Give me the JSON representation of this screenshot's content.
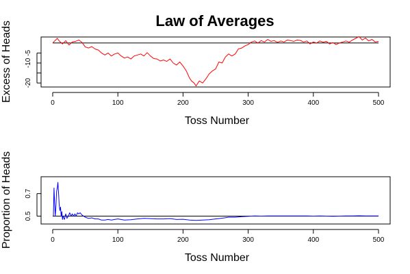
{
  "title": "Law of Averages",
  "chart_data": [
    {
      "type": "line",
      "ylabel": "Excess of Heads",
      "xlabel": "Toss Number",
      "xlim": [
        0,
        500
      ],
      "ylim": [
        -22,
        3
      ],
      "xticks": [
        0,
        100,
        200,
        300,
        400,
        500
      ],
      "yticks": [
        -20,
        -15,
        -10,
        -5
      ],
      "ytick_labels": [
        "-20",
        "",
        "-10",
        "-5"
      ],
      "reference_line": 0,
      "series": [
        {
          "color": "#ff0000",
          "points": [
            [
              0,
              0
            ],
            [
              3,
              1
            ],
            [
              7,
              2.3
            ],
            [
              10,
              1
            ],
            [
              15,
              -0.5
            ],
            [
              20,
              1.2
            ],
            [
              25,
              -1
            ],
            [
              30,
              0.5
            ],
            [
              35,
              0.8
            ],
            [
              40,
              1.5
            ],
            [
              45,
              0.3
            ],
            [
              50,
              -2
            ],
            [
              55,
              -2.5
            ],
            [
              60,
              -1.8
            ],
            [
              65,
              -3
            ],
            [
              70,
              -3.5
            ],
            [
              75,
              -5
            ],
            [
              80,
              -6
            ],
            [
              85,
              -5
            ],
            [
              90,
              -6.5
            ],
            [
              95,
              -5.5
            ],
            [
              100,
              -5
            ],
            [
              105,
              -6.5
            ],
            [
              110,
              -7.5
            ],
            [
              115,
              -7
            ],
            [
              120,
              -8
            ],
            [
              125,
              -6.5
            ],
            [
              130,
              -6
            ],
            [
              135,
              -5.5
            ],
            [
              140,
              -6.5
            ],
            [
              145,
              -4.8
            ],
            [
              150,
              -6.5
            ],
            [
              155,
              -7.8
            ],
            [
              160,
              -8
            ],
            [
              165,
              -9
            ],
            [
              170,
              -8.5
            ],
            [
              175,
              -9.2
            ],
            [
              180,
              -8
            ],
            [
              185,
              -10
            ],
            [
              190,
              -11
            ],
            [
              195,
              -9.5
            ],
            [
              200,
              -11.5
            ],
            [
              205,
              -14
            ],
            [
              210,
              -17.5
            ],
            [
              213,
              -19
            ],
            [
              217,
              -20
            ],
            [
              220,
              -21.5
            ],
            [
              225,
              -19
            ],
            [
              230,
              -20
            ],
            [
              235,
              -18
            ],
            [
              240,
              -15.5
            ],
            [
              245,
              -14
            ],
            [
              250,
              -13
            ],
            [
              255,
              -9.5
            ],
            [
              260,
              -10
            ],
            [
              265,
              -7
            ],
            [
              270,
              -5.5
            ],
            [
              275,
              -6.5
            ],
            [
              280,
              -5.5
            ],
            [
              285,
              -3
            ],
            [
              290,
              -2.5
            ],
            [
              295,
              -1.5
            ],
            [
              300,
              -0.8
            ],
            [
              305,
              0.5
            ],
            [
              310,
              1
            ],
            [
              315,
              0
            ],
            [
              320,
              1.2
            ],
            [
              325,
              0.5
            ],
            [
              330,
              1.8
            ],
            [
              335,
              0.8
            ],
            [
              340,
              1.2
            ],
            [
              345,
              0.3
            ],
            [
              350,
              1
            ],
            [
              355,
              0.5
            ],
            [
              360,
              1.5
            ],
            [
              365,
              1.2
            ],
            [
              370,
              0.8
            ],
            [
              375,
              1.5
            ],
            [
              380,
              1.3
            ],
            [
              385,
              0.5
            ],
            [
              390,
              1
            ],
            [
              395,
              -0.5
            ],
            [
              400,
              0.5
            ],
            [
              405,
              0
            ],
            [
              410,
              1
            ],
            [
              415,
              0.4
            ],
            [
              420,
              0.8
            ],
            [
              425,
              -0.5
            ],
            [
              430,
              0.2
            ],
            [
              435,
              -0.8
            ],
            [
              440,
              0
            ],
            [
              445,
              0.5
            ],
            [
              450,
              1
            ],
            [
              455,
              0.4
            ],
            [
              460,
              1.5
            ],
            [
              465,
              2.3
            ],
            [
              470,
              3.2
            ],
            [
              475,
              1.5
            ],
            [
              480,
              2.5
            ],
            [
              485,
              1
            ],
            [
              490,
              1.8
            ],
            [
              495,
              0.5
            ],
            [
              500,
              0.8
            ]
          ]
        }
      ]
    },
    {
      "type": "line",
      "ylabel": "Proportion of Heads",
      "xlabel": "Toss Number",
      "xlim": [
        0,
        500
      ],
      "ylim": [
        0.43,
        0.85
      ],
      "xticks": [
        0,
        100,
        200,
        300,
        400,
        500
      ],
      "yticks": [
        0.5,
        0.7
      ],
      "ytick_labels": [
        "0.5",
        "0.7"
      ],
      "reference_line": 0.5,
      "series": [
        {
          "color": "#0000ff",
          "points": [
            [
              1,
              0.5
            ],
            [
              2,
              0.75
            ],
            [
              3,
              0.6
            ],
            [
              4,
              0.5
            ],
            [
              5,
              0.6
            ],
            [
              6,
              0.72
            ],
            [
              7,
              0.75
            ],
            [
              8,
              0.8
            ],
            [
              9,
              0.7
            ],
            [
              10,
              0.6
            ],
            [
              11,
              0.55
            ],
            [
              12,
              0.58
            ],
            [
              13,
              0.5
            ],
            [
              14,
              0.54
            ],
            [
              15,
              0.47
            ],
            [
              16,
              0.5
            ],
            [
              18,
              0.47
            ],
            [
              20,
              0.52
            ],
            [
              22,
              0.48
            ],
            [
              24,
              0.5
            ],
            [
              26,
              0.53
            ],
            [
              28,
              0.5
            ],
            [
              30,
              0.52
            ],
            [
              32,
              0.5
            ],
            [
              34,
              0.52
            ],
            [
              36,
              0.5
            ],
            [
              38,
              0.53
            ],
            [
              40,
              0.52
            ],
            [
              42,
              0.53
            ],
            [
              45,
              0.51
            ],
            [
              50,
              0.49
            ],
            [
              55,
              0.48
            ],
            [
              60,
              0.485
            ],
            [
              65,
              0.475
            ],
            [
              70,
              0.475
            ],
            [
              75,
              0.465
            ],
            [
              80,
              0.465
            ],
            [
              85,
              0.47
            ],
            [
              90,
              0.465
            ],
            [
              95,
              0.47
            ],
            [
              100,
              0.475
            ],
            [
              110,
              0.465
            ],
            [
              120,
              0.468
            ],
            [
              130,
              0.475
            ],
            [
              140,
              0.48
            ],
            [
              150,
              0.478
            ],
            [
              160,
              0.475
            ],
            [
              170,
              0.475
            ],
            [
              180,
              0.478
            ],
            [
              190,
              0.47
            ],
            [
              200,
              0.472
            ],
            [
              210,
              0.465
            ],
            [
              220,
              0.462
            ],
            [
              230,
              0.465
            ],
            [
              240,
              0.468
            ],
            [
              250,
              0.475
            ],
            [
              260,
              0.482
            ],
            [
              270,
              0.49
            ],
            [
              280,
              0.49
            ],
            [
              290,
              0.495
            ],
            [
              300,
              0.499
            ],
            [
              310,
              0.501
            ],
            [
              320,
              0.5
            ],
            [
              330,
              0.502
            ],
            [
              340,
              0.501
            ],
            [
              350,
              0.501
            ],
            [
              360,
              0.502
            ],
            [
              370,
              0.501
            ],
            [
              380,
              0.502
            ],
            [
              390,
              0.501
            ],
            [
              400,
              0.5
            ],
            [
              410,
              0.501
            ],
            [
              420,
              0.5
            ],
            [
              430,
              0.499
            ],
            [
              440,
              0.5
            ],
            [
              450,
              0.501
            ],
            [
              460,
              0.501
            ],
            [
              470,
              0.503
            ],
            [
              480,
              0.502
            ],
            [
              490,
              0.501
            ],
            [
              500,
              0.501
            ]
          ]
        }
      ]
    }
  ]
}
